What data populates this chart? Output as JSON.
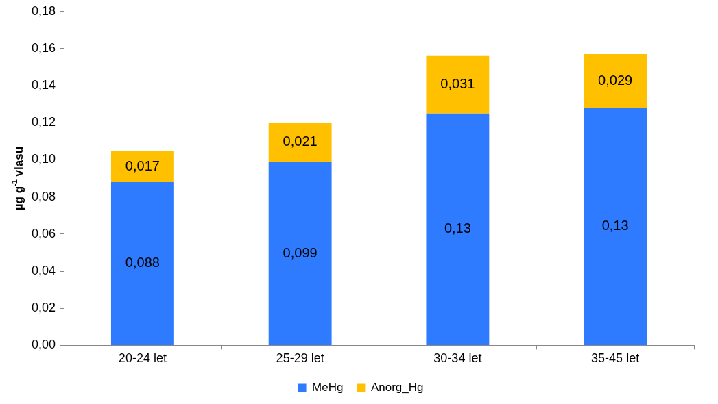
{
  "chart_data": {
    "type": "bar",
    "stacked": true,
    "ylabel": "µg g$^{-1}$ vlasu",
    "categories": [
      "20-24 let",
      "25-29 let",
      "30-34 let",
      "35-45 let"
    ],
    "series": [
      {
        "name": "MeHg",
        "color": "#2e7bff",
        "values": [
          0.088,
          0.099,
          0.125,
          0.128
        ],
        "value_labels": [
          "0,088",
          "0,099",
          "0,13",
          "0,13"
        ]
      },
      {
        "name": "Anorg_Hg",
        "color": "#ffc000",
        "values": [
          0.017,
          0.021,
          0.031,
          0.029
        ],
        "value_labels": [
          "0,017",
          "0,021",
          "0,031",
          "0,029"
        ]
      }
    ],
    "ylim": [
      0,
      0.18
    ],
    "yticks": [
      {
        "value": 0,
        "label": "0,00"
      },
      {
        "value": 0.02,
        "label": "0,02"
      },
      {
        "value": 0.04,
        "label": "0,04"
      },
      {
        "value": 0.06,
        "label": "0,06"
      },
      {
        "value": 0.08,
        "label": "0,08"
      },
      {
        "value": 0.1,
        "label": "0,10"
      },
      {
        "value": 0.12,
        "label": "0,12"
      },
      {
        "value": 0.14,
        "label": "0,14"
      },
      {
        "value": 0.16,
        "label": "0,16"
      },
      {
        "value": 0.18,
        "label": "0,18"
      }
    ],
    "grid": false,
    "legend": "bottom"
  }
}
